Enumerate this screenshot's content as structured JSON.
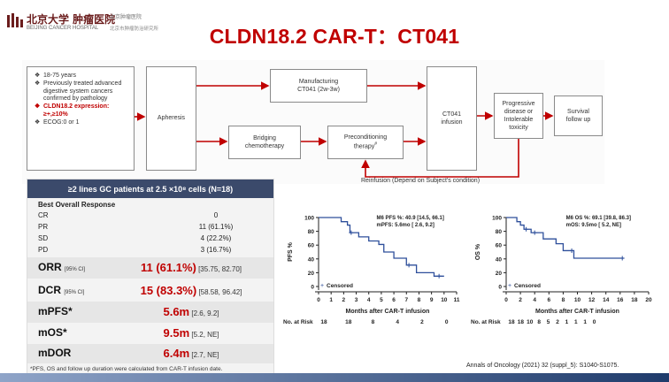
{
  "header": {
    "hospital_cn": "北京大学 肿瘤医院",
    "hospital_en": "BEIJING CANCER HOSPITAL",
    "institute_cn": "北京肿瘤医院",
    "institute_cn2": "北京市肿瘤防治研究所",
    "title": "CLDN18.2 CAR-T：CT041"
  },
  "flow": {
    "criteria": [
      {
        "text": "18-75 years",
        "highlight": false
      },
      {
        "text": "Previously treated advanced digestive system cancers confirmed by pathology",
        "highlight": false
      },
      {
        "text": "CLDN18.2 expression: ≥+,≥10%",
        "highlight": true
      },
      {
        "text": "ECOG:0 or 1",
        "highlight": false
      }
    ],
    "apheresis": "Apheresis",
    "manufacturing_line1": "Manufacturing",
    "manufacturing_line2": "CT041 (2w-3w)",
    "bridging_line1": "Bridging",
    "bridging_line2": "chemotherapy",
    "preconditioning_line1": "Preconditioning",
    "preconditioning_line2": "therapy",
    "preconditioning_mark": "#",
    "infusion_line1": "CT041",
    "infusion_line2": "infusion",
    "progressive_line1": "Progressive",
    "progressive_line2": "disease or",
    "progressive_line3": "Intolerable",
    "progressive_line4": "toxicity",
    "survival_line1": "Survival",
    "survival_line2": "follow up",
    "reinfusion": "Reinfusion (Depend on Subject's condition)"
  },
  "table": {
    "header": "≥2 lines GC patients at 2.5 ×10⁸ cells  (N=18)",
    "subheader": "Best Overall Response",
    "responses": [
      {
        "label": "CR",
        "value": "0"
      },
      {
        "label": "PR",
        "value": "11 (61.1%)"
      },
      {
        "label": "SD",
        "value": "4 (22.2%)"
      },
      {
        "label": "PD",
        "value": "3 (16.7%)"
      }
    ],
    "orr": {
      "label": "ORR",
      "ci": "[95% CI]",
      "value": "11 (61.1%)",
      "range": "[35.75, 82.70]"
    },
    "dcr": {
      "label": "DCR",
      "ci": "[95% CI]",
      "value": "15 (83.3%)",
      "range": "[58.58, 96.42]"
    },
    "mpfs": {
      "label": "mPFS*",
      "value": "5.6m",
      "range": "[2.6, 9.2]"
    },
    "mos": {
      "label": "mOS*",
      "value": "9.5m",
      "range": "[5.2, NE]"
    },
    "mdor": {
      "label": "mDOR",
      "value": "6.4m",
      "range": "[2.7, NE]"
    },
    "footnote": "*PFS, OS and follow up duration were calculated from CAR-T infusion date."
  },
  "chart_data": [
    {
      "type": "line",
      "ylabel": "PFS %",
      "xlabel": "Months after CAR-T infusion",
      "xlim": [
        0,
        11
      ],
      "ylim": [
        0,
        100
      ],
      "xticks": [
        "0",
        "1",
        "2",
        "3",
        "4",
        "5",
        "6",
        "7",
        "8",
        "9",
        "10",
        "11"
      ],
      "yticks": [
        "0",
        "20",
        "40",
        "60",
        "80",
        "100"
      ],
      "annotation_line1": "M6 PFS %: 40.9 [14.5, 66.1]",
      "annotation_line2": "mPFS: 5.6mo [ 2.6, 9.2]",
      "legend": "Censored",
      "at_risk_label": "No. at Risk",
      "at_risk": [
        "18",
        "18",
        "8",
        "4",
        "2",
        "0"
      ],
      "series": [
        {
          "x": [
            0,
            1.8,
            1.8,
            2.3,
            2.3,
            2.5,
            2.5,
            3.2,
            3.2,
            4.0,
            4.0,
            4.8,
            4.8,
            5.2,
            5.2,
            6.0,
            6.0,
            7.0,
            7.0,
            7.8,
            7.8,
            9.2,
            9.2,
            10.0
          ],
          "y": [
            100,
            100,
            94,
            94,
            89,
            89,
            78,
            78,
            72,
            72,
            66,
            66,
            61,
            61,
            50,
            50,
            41,
            41,
            31,
            31,
            20,
            20,
            15,
            15
          ]
        }
      ],
      "censored": [
        [
          2.6,
          78
        ],
        [
          7.2,
          31
        ],
        [
          9.6,
          15
        ]
      ]
    },
    {
      "type": "line",
      "ylabel": "OS %",
      "xlabel": "Months after CAR-T infusion",
      "xlim": [
        0,
        20
      ],
      "ylim": [
        0,
        100
      ],
      "xticks": [
        "0",
        "2",
        "4",
        "6",
        "8",
        "10",
        "12",
        "14",
        "16",
        "18",
        "20"
      ],
      "yticks": [
        "0",
        "20",
        "40",
        "60",
        "80",
        "100"
      ],
      "annotation_line1": "M6 OS %: 69.1 [39.8, 86.3]",
      "annotation_line2": "mOS: 9.5mo [ 5.2, NE]",
      "legend": "Censored",
      "at_risk_label": "No. at Risk",
      "at_risk": [
        "18",
        "18",
        "10",
        "8",
        "5",
        "2",
        "1",
        "1",
        "1",
        "0"
      ],
      "series": [
        {
          "x": [
            0,
            1.5,
            1.5,
            2.0,
            2.0,
            2.5,
            2.5,
            3.5,
            3.5,
            5.2,
            5.2,
            7.0,
            7.0,
            8.0,
            8.0,
            9.5,
            9.5,
            16.5
          ],
          "y": [
            100,
            100,
            94,
            94,
            89,
            89,
            83,
            83,
            78,
            78,
            69,
            69,
            62,
            62,
            52,
            52,
            41,
            41
          ]
        }
      ],
      "censored": [
        [
          2.8,
          83
        ],
        [
          4.0,
          78
        ],
        [
          9.2,
          52
        ],
        [
          16.3,
          41
        ]
      ]
    }
  ],
  "citation": "Annals of Oncology (2021) 32 (suppl_5): S1040-S1075."
}
